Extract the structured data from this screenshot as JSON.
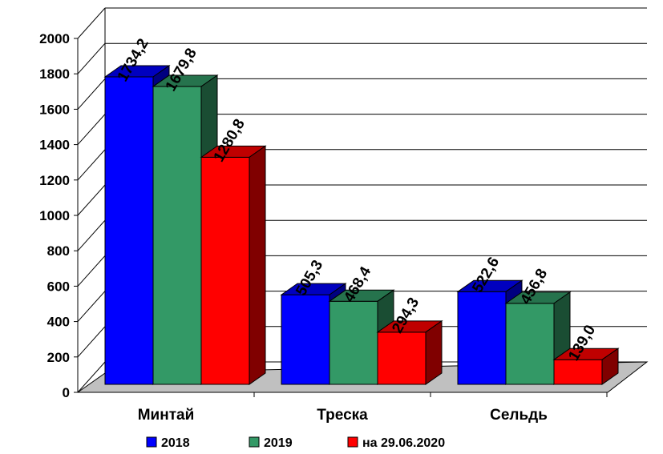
{
  "chart_data": {
    "type": "bar",
    "categories": [
      "Минтай",
      "Треска",
      "Сельдь"
    ],
    "series": [
      {
        "name": "2018",
        "values": [
          1734.2,
          505.3,
          522.6
        ],
        "labels": [
          "1734,2",
          "505,3",
          "522,6"
        ],
        "color": "#0000FF"
      },
      {
        "name": "2019",
        "values": [
          1679.8,
          468.4,
          456.8
        ],
        "labels": [
          "1679,8",
          "468,4",
          "456,8"
        ],
        "color": "#339966"
      },
      {
        "name": "на 29.06.2020",
        "values": [
          1280.8,
          294.3,
          139.0
        ],
        "labels": [
          "1280,8",
          "294,3",
          "139,0"
        ],
        "color": "#FF0000"
      }
    ],
    "y_ticks": [
      "0",
      "200",
      "400",
      "600",
      "800",
      "1000",
      "1200",
      "1400",
      "1600",
      "1800",
      "2000"
    ],
    "ylim": [
      0,
      2000
    ],
    "grid": true,
    "legend": "bottom",
    "style": "3d-clustered-column"
  }
}
